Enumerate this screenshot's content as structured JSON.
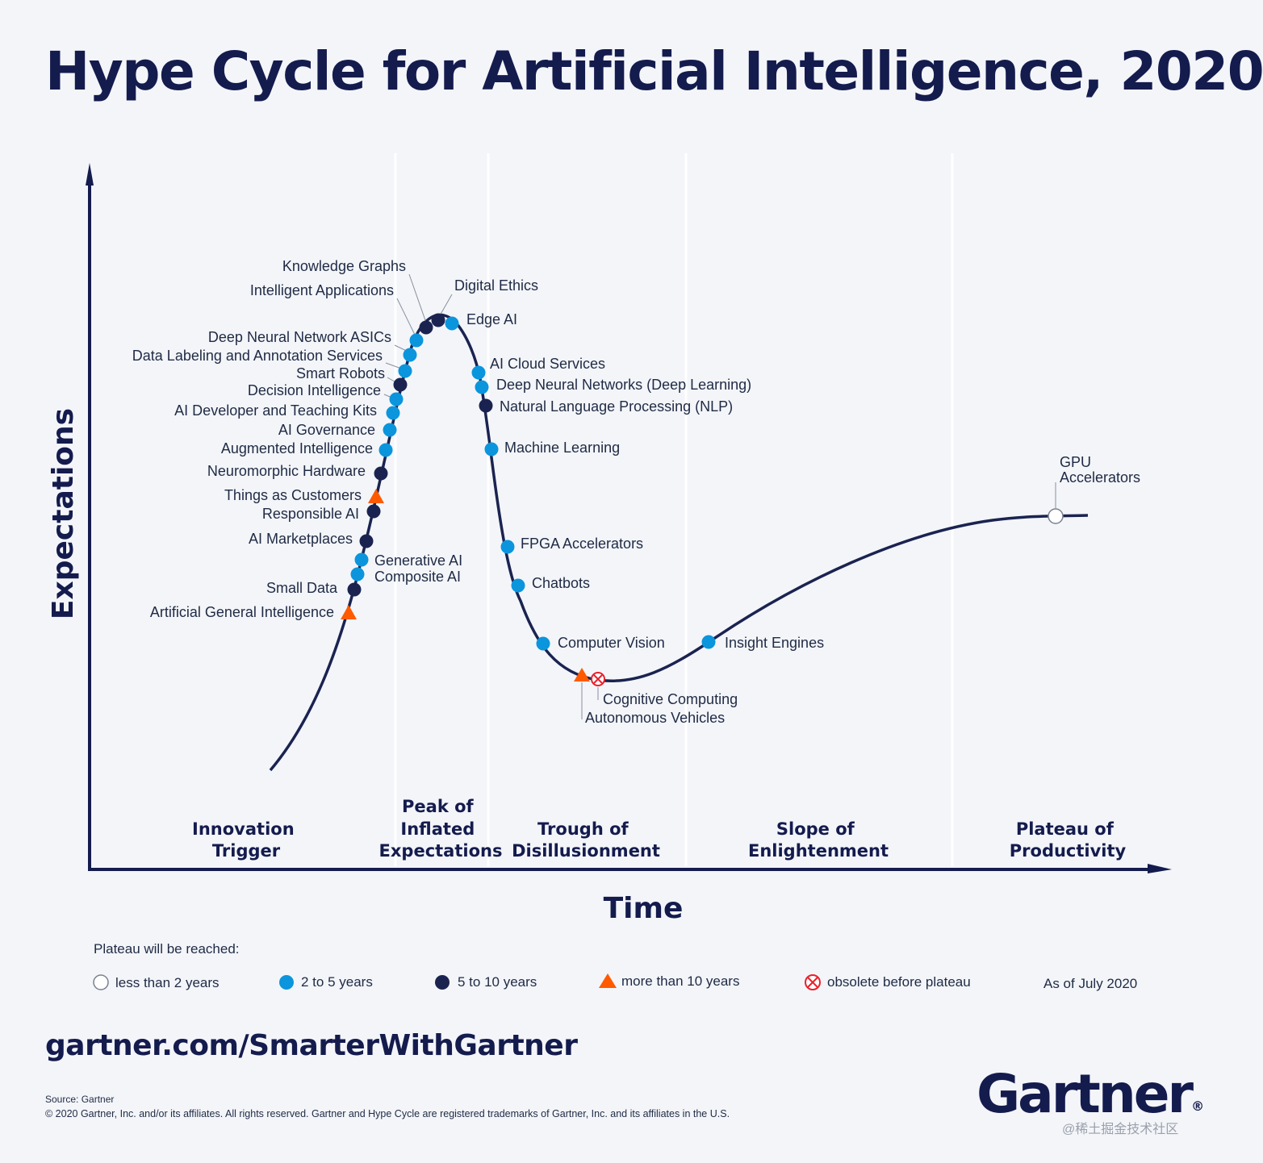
{
  "title": "Hype Cycle for Artificial Intelligence, 2020",
  "y_axis_label": "Expectations",
  "x_axis_label": "Time",
  "phases": [
    {
      "id": "innovation",
      "lines": [
        "Innovation",
        "Trigger"
      ]
    },
    {
      "id": "peak",
      "lines": [
        "Peak of",
        "Inflated",
        "Expectations"
      ]
    },
    {
      "id": "trough",
      "lines": [
        "Trough of",
        "Disillusionment"
      ]
    },
    {
      "id": "slope",
      "lines": [
        "Slope of",
        "Enlightenment"
      ]
    },
    {
      "id": "plateau",
      "lines": [
        "Plateau of",
        "Productivity"
      ]
    }
  ],
  "technologies": [
    {
      "name": "Knowledge Graphs",
      "status": "5 to 10 years"
    },
    {
      "name": "Intelligent Applications",
      "status": "2 to 5 years"
    },
    {
      "name": "Digital Ethics",
      "status": "5 to 10 years"
    },
    {
      "name": "Edge AI",
      "status": "2 to 5 years"
    },
    {
      "name": "Deep Neural Network ASICs",
      "status": "2 to 5 years"
    },
    {
      "name": "Data Labeling and Annotation Services",
      "status": "2 to 5 years"
    },
    {
      "name": "Smart Robots",
      "status": "2 to 5 years"
    },
    {
      "name": "Decision Intelligence",
      "status": "5 to 10 years"
    },
    {
      "name": "AI Developer and Teaching Kits",
      "status": "2 to 5 years"
    },
    {
      "name": "AI Governance",
      "status": "2 to 5 years"
    },
    {
      "name": "Augmented Intelligence",
      "status": "2 to 5 years"
    },
    {
      "name": "Neuromorphic Hardware",
      "status": "5 to 10 years"
    },
    {
      "name": "Things as Customers",
      "status": "more than 10 years"
    },
    {
      "name": "Responsible AI",
      "status": "5 to 10 years"
    },
    {
      "name": "AI Marketplaces",
      "status": "5 to 10 years"
    },
    {
      "name": "Generative AI",
      "status": "2 to 5 years"
    },
    {
      "name": "Composite AI",
      "status": "2 to 5 years"
    },
    {
      "name": "Small Data",
      "status": "5 to 10 years"
    },
    {
      "name": "Artificial General Intelligence",
      "status": "more than 10 years"
    },
    {
      "name": "AI Cloud Services",
      "status": "2 to 5 years"
    },
    {
      "name": "Deep Neural Networks (Deep Learning)",
      "status": "2 to 5 years"
    },
    {
      "name": "Natural Language Processing (NLP)",
      "status": "5 to 10 years"
    },
    {
      "name": "Machine Learning",
      "status": "2 to 5 years"
    },
    {
      "name": "FPGA Accelerators",
      "status": "2 to 5 years"
    },
    {
      "name": "Chatbots",
      "status": "2 to 5 years"
    },
    {
      "name": "Computer Vision",
      "status": "2 to 5 years"
    },
    {
      "name": "Autonomous Vehicles",
      "status": "more than 10 years"
    },
    {
      "name": "Cognitive Computing",
      "status": "obsolete before plateau"
    },
    {
      "name": "Insight Engines",
      "status": "2 to 5 years"
    },
    {
      "name": "GPU Accelerators",
      "status": "less than 2 years"
    }
  ],
  "gpu_label_lines": [
    "GPU",
    "Accelerators"
  ],
  "legend": {
    "heading": "Plateau will be reached:",
    "items": [
      "less than 2 years",
      "2 to 5 years",
      "5 to 10 years",
      "more than 10 years",
      "obsolete before plateau"
    ],
    "as_of": "As of July 2020"
  },
  "colors": {
    "navy": "#141b4d",
    "light_blue": "#0b95dc",
    "dark_navy": "#1a2350",
    "orange": "#ff5a00",
    "obsolete_red": "#e8222c"
  },
  "footer": {
    "url": "gartner.com/SmarterWithGartner",
    "source": "Source: Gartner",
    "copyright": "© 2020 Gartner, Inc. and/or its affiliates. All rights reserved. Gartner and Hype Cycle are registered trademarks of Gartner, Inc. and its affiliates in the U.S."
  },
  "logo": "Gartner",
  "logo_mark": "®",
  "watermark": "@稀土掘金技术社区"
}
